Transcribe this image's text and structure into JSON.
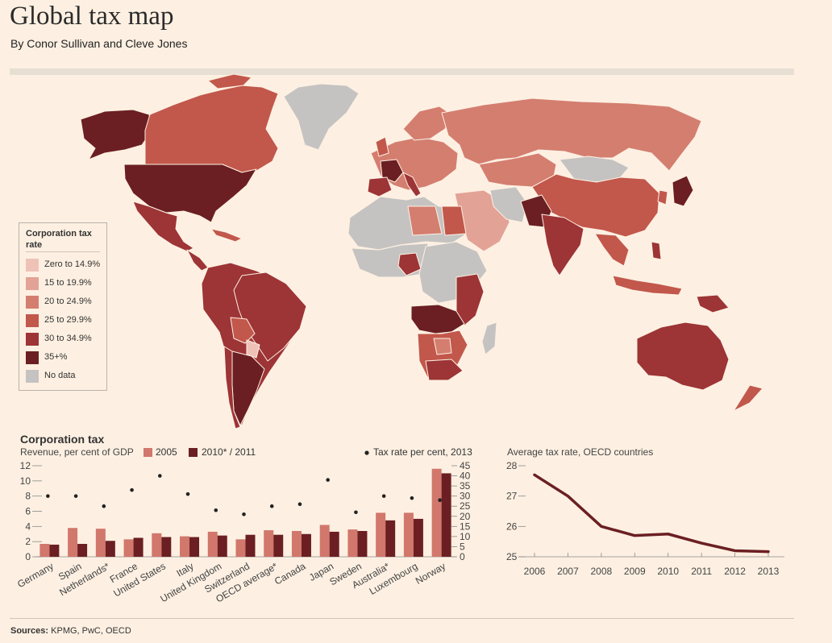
{
  "header": {
    "title": "Global tax map",
    "byline": "By Conor Sullivan and Cleve Jones"
  },
  "map_legend": {
    "title": "Corporation tax rate",
    "items": [
      {
        "label": "Zero to 14.9%",
        "color": "#efc2b8"
      },
      {
        "label": "15 to 19.9%",
        "color": "#e3a296"
      },
      {
        "label": "20 to 24.9%",
        "color": "#d47e70"
      },
      {
        "label": "25 to 29.9%",
        "color": "#c2574b"
      },
      {
        "label": "30 to 34.9%",
        "color": "#9d3436"
      },
      {
        "label": "35+%",
        "color": "#6b1f22"
      },
      {
        "label": "No data",
        "color": "#c5c3c1"
      }
    ]
  },
  "colors": {
    "background": "#fdf0e2",
    "bar_2005": "#d1776c",
    "bar_2010": "#6b1f22",
    "dot": "#222222",
    "line": "#6b1f22"
  },
  "chart_data": [
    {
      "type": "bar",
      "title": "Corporation tax",
      "subtitle": "Revenue, per cent of GDP",
      "categories": [
        "Germany",
        "Spain",
        "Netherlands*",
        "France",
        "United States",
        "Italy",
        "United Kingdom",
        "Switzerland",
        "OECD average*",
        "Canada",
        "Japan",
        "Sweden",
        "Australia*",
        "Luxembourg",
        "Norway"
      ],
      "series": [
        {
          "name": "2005",
          "values": [
            1.7,
            3.8,
            3.7,
            2.3,
            3.1,
            2.7,
            3.3,
            2.3,
            3.5,
            3.4,
            4.2,
            3.6,
            5.8,
            5.8,
            11.6
          ]
        },
        {
          "name": "2010* / 2011",
          "values": [
            1.6,
            1.7,
            2.1,
            2.5,
            2.6,
            2.6,
            2.8,
            2.9,
            2.9,
            3.0,
            3.3,
            3.4,
            4.8,
            5.0,
            11.0
          ]
        },
        {
          "name": "Tax rate per cent, 2013",
          "axis": "right",
          "values": [
            30,
            30,
            25,
            33,
            40,
            31,
            23,
            21,
            25,
            26,
            38,
            22,
            30,
            29,
            28
          ]
        }
      ],
      "ylim": [
        0,
        12
      ],
      "yticks": [
        0,
        2,
        4,
        6,
        8,
        10,
        12
      ],
      "y2lim": [
        0,
        45
      ],
      "y2ticks": [
        0,
        5,
        10,
        15,
        20,
        25,
        30,
        35,
        40,
        45
      ]
    },
    {
      "type": "line",
      "title": "Average tax rate, OECD countries",
      "x": [
        2006,
        2007,
        2008,
        2009,
        2010,
        2011,
        2012,
        2013
      ],
      "values": [
        27.7,
        27.0,
        26.0,
        25.7,
        25.75,
        25.45,
        25.2,
        25.17
      ],
      "ylim": [
        25,
        28
      ],
      "yticks": [
        25,
        26,
        27,
        28
      ]
    }
  ],
  "footer": {
    "sources_label": "Sources:",
    "sources_text": "KPMG, PwC, OECD"
  }
}
